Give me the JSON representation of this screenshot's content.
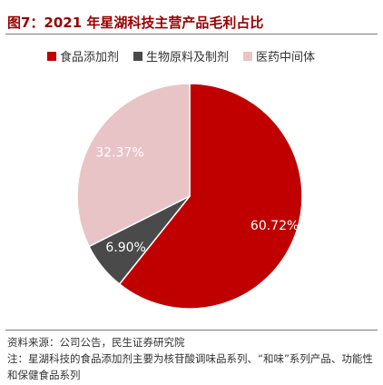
{
  "figure": {
    "title": "图7：2021 年星湖科技主营产品毛利占比"
  },
  "chart_data": {
    "type": "pie",
    "categories": [
      "食品添加剂",
      "生物原料及制剂",
      "医药中间体"
    ],
    "values": [
      60.72,
      6.9,
      32.37
    ],
    "labels": [
      "60.72%",
      "6.90%",
      "32.37%"
    ],
    "colors": [
      "#c00000",
      "#4a4a4a",
      "#e8c4c6"
    ],
    "label_colors": [
      "#ffffff",
      "#ffffff",
      "#ffffff"
    ],
    "legend_position": "top"
  },
  "notes": {
    "source": "资料来源：公司公告，民生证券研究院",
    "note": "注：星湖科技的食品添加剂主要为核苷酸调味品系列、“和味”系列产品、功能性和保健食品系列"
  }
}
